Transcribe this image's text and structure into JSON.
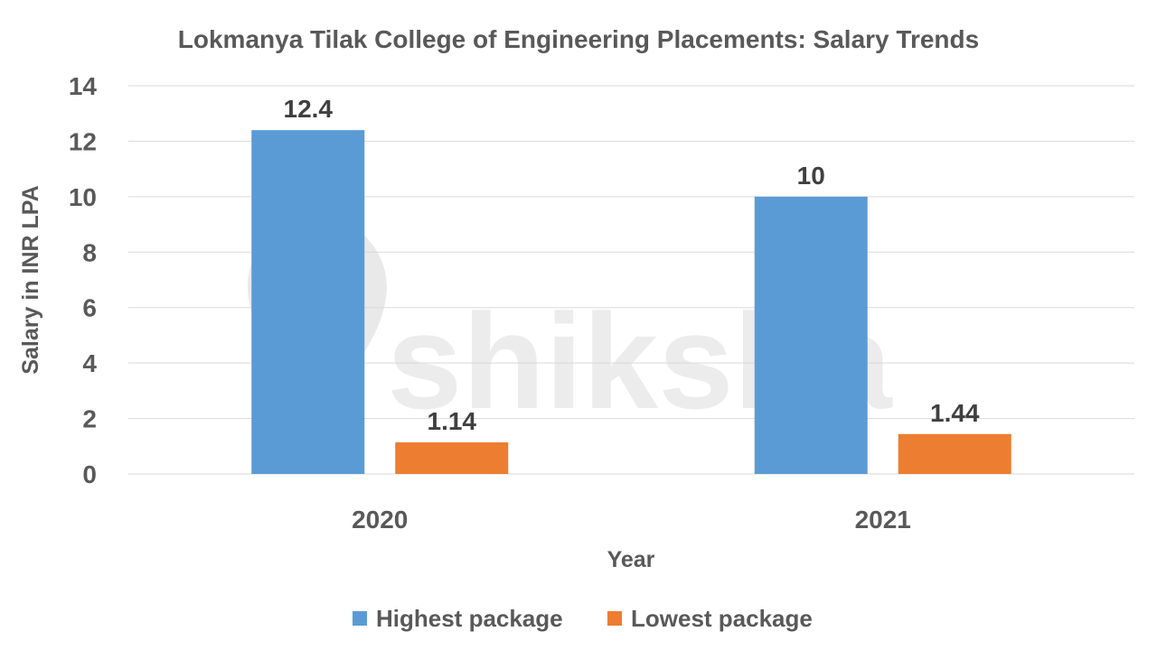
{
  "watermark": {
    "text": "shiksha",
    "icon": "shiksha-logo-icon"
  },
  "chart_data": {
    "type": "bar",
    "title": "Lokmanya Tilak College of Engineering Placements: Salary Trends",
    "xlabel": "Year",
    "ylabel": "Salary in INR LPA",
    "categories": [
      "2020",
      "2021"
    ],
    "series": [
      {
        "name": "Highest package",
        "values": [
          12.4,
          10
        ],
        "labels": [
          "12.4",
          "10"
        ],
        "color": "#5b9bd5"
      },
      {
        "name": "Lowest package",
        "values": [
          1.14,
          1.44
        ],
        "labels": [
          "1.14",
          "1.44"
        ],
        "color": "#ed7d31"
      }
    ],
    "ylim": [
      0,
      14
    ],
    "yticks": [
      0,
      2,
      4,
      6,
      8,
      10,
      12,
      14
    ],
    "grid": true,
    "legend_position": "bottom"
  }
}
